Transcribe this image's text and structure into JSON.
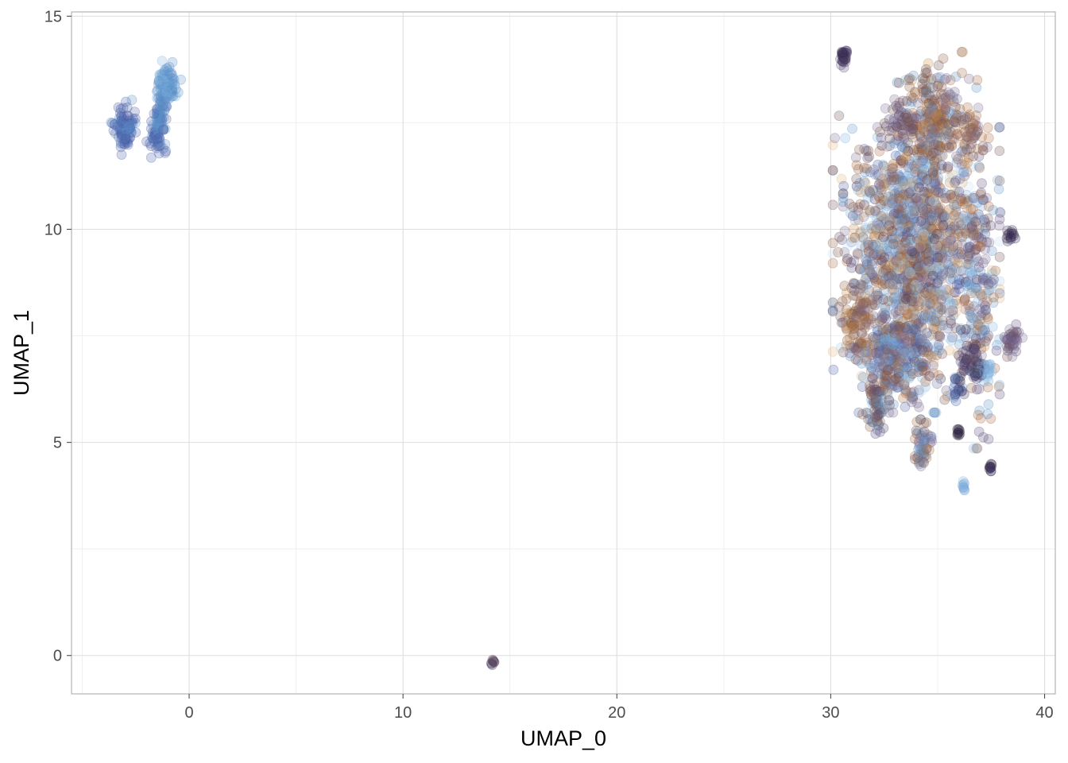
{
  "chart_data": {
    "type": "scatter",
    "title": "",
    "xlabel": "UMAP_0",
    "ylabel": "UMAP_1",
    "xlim": [
      -5.5,
      40.5
    ],
    "ylim": [
      -0.9,
      15.1
    ],
    "x_ticks": [
      0,
      10,
      20,
      30,
      40
    ],
    "x_tick_labels": [
      "0",
      "10",
      "20",
      "30",
      "40"
    ],
    "y_ticks": [
      0,
      5,
      10,
      15
    ],
    "y_tick_labels": [
      "0",
      "5",
      "10",
      "15"
    ],
    "x_minor_ticks": [
      -5,
      5,
      15,
      25,
      35
    ],
    "y_minor_ticks": [
      2.5,
      7.5,
      12.5
    ],
    "grid": true,
    "legend": "none",
    "point_opacity": 0.25,
    "palette": [
      "#3b2e5a",
      "#5a4a78",
      "#7b6a93",
      "#4a5fa8",
      "#5b8ec9",
      "#7fb2e0",
      "#a9cdee",
      "#c9e0f2",
      "#8b5a3c",
      "#a8693a",
      "#c98a4a",
      "#e0b47c",
      "#6e4f4f",
      "#2f2440"
    ],
    "clusters": [
      {
        "cx": -3.0,
        "cy": 12.4,
        "sx": 0.25,
        "sy": 0.25,
        "n": 90,
        "colors": [
          3,
          3,
          4
        ]
      },
      {
        "cx": -1.6,
        "cy": 12.2,
        "sx": 0.15,
        "sy": 0.2,
        "n": 40,
        "colors": [
          3,
          4
        ]
      },
      {
        "cx": -1.3,
        "cy": 12.7,
        "sx": 0.15,
        "sy": 0.35,
        "n": 60,
        "colors": [
          4,
          4,
          3
        ]
      },
      {
        "cx": -1.0,
        "cy": 13.4,
        "sx": 0.25,
        "sy": 0.25,
        "n": 80,
        "colors": [
          4,
          5,
          4
        ]
      },
      {
        "cx": 14.2,
        "cy": -0.15,
        "sx": 0.05,
        "sy": 0.04,
        "n": 8,
        "colors": [
          12,
          0
        ]
      },
      {
        "cx": 34.0,
        "cy": 9.6,
        "sx": 1.5,
        "sy": 1.5,
        "n": 1600,
        "colors": [
          0,
          1,
          2,
          3,
          4,
          5,
          6,
          7,
          8,
          9,
          10,
          11,
          12,
          2,
          4,
          9,
          8,
          5
        ]
      },
      {
        "cx": 34.8,
        "cy": 12.6,
        "sx": 0.7,
        "sy": 0.6,
        "n": 220,
        "colors": [
          8,
          9,
          2,
          4,
          12,
          10
        ]
      },
      {
        "cx": 33.0,
        "cy": 7.0,
        "sx": 0.8,
        "sy": 0.5,
        "n": 260,
        "colors": [
          3,
          4,
          2,
          9,
          12,
          5
        ]
      },
      {
        "cx": 31.2,
        "cy": 7.8,
        "sx": 0.35,
        "sy": 0.4,
        "n": 90,
        "colors": [
          8,
          12,
          2,
          10
        ]
      },
      {
        "cx": 37.0,
        "cy": 8.5,
        "sx": 0.4,
        "sy": 1.4,
        "n": 160,
        "colors": [
          4,
          2,
          9,
          1,
          5
        ]
      },
      {
        "cx": 38.5,
        "cy": 7.4,
        "sx": 0.2,
        "sy": 0.15,
        "n": 40,
        "colors": [
          12,
          2,
          1
        ]
      },
      {
        "cx": 38.4,
        "cy": 9.85,
        "sx": 0.1,
        "sy": 0.05,
        "n": 14,
        "colors": [
          0,
          13
        ]
      },
      {
        "cx": 30.6,
        "cy": 14.05,
        "sx": 0.08,
        "sy": 0.12,
        "n": 30,
        "colors": [
          0,
          13,
          1
        ]
      },
      {
        "cx": 36.9,
        "cy": 6.75,
        "sx": 0.18,
        "sy": 0.12,
        "n": 30,
        "colors": [
          0,
          13,
          5
        ]
      },
      {
        "cx": 37.4,
        "cy": 6.7,
        "sx": 0.06,
        "sy": 0.1,
        "n": 12,
        "colors": [
          5
        ]
      },
      {
        "cx": 32.1,
        "cy": 5.8,
        "sx": 0.25,
        "sy": 0.3,
        "n": 60,
        "colors": [
          12,
          1,
          8,
          4
        ]
      },
      {
        "cx": 34.3,
        "cy": 4.9,
        "sx": 0.2,
        "sy": 0.25,
        "n": 50,
        "colors": [
          12,
          9,
          4,
          2
        ]
      },
      {
        "cx": 35.9,
        "cy": 6.3,
        "sx": 0.15,
        "sy": 0.15,
        "n": 22,
        "colors": [
          3,
          4,
          0
        ]
      },
      {
        "cx": 35.95,
        "cy": 5.25,
        "sx": 0.05,
        "sy": 0.06,
        "n": 10,
        "colors": [
          13,
          0
        ]
      },
      {
        "cx": 37.45,
        "cy": 4.42,
        "sx": 0.05,
        "sy": 0.05,
        "n": 10,
        "colors": [
          13,
          0
        ]
      },
      {
        "cx": 36.2,
        "cy": 3.95,
        "sx": 0.04,
        "sy": 0.1,
        "n": 8,
        "colors": [
          4,
          5
        ]
      },
      {
        "cx": 36.5,
        "cy": 7.0,
        "sx": 0.25,
        "sy": 0.25,
        "n": 40,
        "colors": [
          0,
          1,
          12
        ]
      },
      {
        "cx": 33.3,
        "cy": 12.5,
        "sx": 0.3,
        "sy": 0.2,
        "n": 40,
        "colors": [
          1,
          12,
          2
        ]
      },
      {
        "cx": 36.6,
        "cy": 12.3,
        "sx": 0.3,
        "sy": 0.25,
        "n": 40,
        "colors": [
          12,
          9,
          2
        ]
      }
    ]
  }
}
